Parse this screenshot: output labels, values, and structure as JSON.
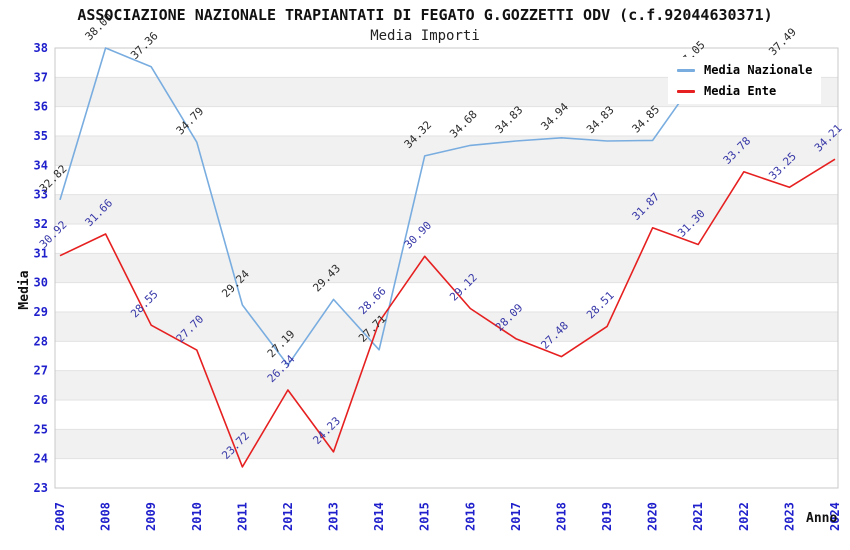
{
  "chart_data": {
    "type": "line",
    "title": "ASSOCIAZIONE NAZIONALE TRAPIANTATI DI FEGATO G.GOZZETTI ODV (c.f.92044630371)",
    "subtitle": "Media Importi",
    "xlabel": "Anno",
    "ylabel": "Media",
    "x": [
      "2007",
      "2008",
      "2009",
      "2010",
      "2011",
      "2012",
      "2013",
      "2014",
      "2015",
      "2016",
      "2017",
      "2018",
      "2019",
      "2020",
      "2021",
      "2022",
      "2023",
      "2024"
    ],
    "ylim": [
      23,
      38
    ],
    "ytick_step": 1,
    "grid": true,
    "band_fill_alt": "#f1f1f1",
    "gridline_color": "#e2e2e2",
    "border_color": "#c9c9c9",
    "tick_label_color": "#1f1fcc",
    "legend_position": "top-right",
    "series": [
      {
        "name": "Media Nazionale",
        "color": "#79ade0",
        "label_color": "#2b2b2b",
        "values": [
          32.82,
          38.0,
          37.36,
          34.79,
          29.24,
          27.19,
          29.43,
          27.71,
          34.32,
          34.68,
          34.83,
          34.94,
          34.83,
          34.85,
          37.05,
          37.3,
          37.49,
          null
        ],
        "labels": [
          "32.82",
          "38.00",
          "37.36",
          "34.79",
          "29.24",
          "27.19",
          "29.43",
          "27.71",
          "34.32",
          "34.68",
          "34.83",
          "34.94",
          "34.83",
          "34.85",
          "37.05",
          "",
          "37.49",
          ""
        ]
      },
      {
        "name": "Media Ente",
        "color": "#e62020",
        "label_color": "#3838a8",
        "values": [
          30.92,
          31.66,
          28.55,
          27.7,
          23.72,
          26.34,
          24.23,
          28.66,
          30.9,
          29.12,
          28.09,
          27.48,
          28.51,
          31.87,
          31.3,
          33.78,
          33.25,
          34.21
        ],
        "labels": [
          "30.92",
          "31.66",
          "28.55",
          "27.70",
          "23.72",
          "26.34",
          "24.23",
          "28.66",
          "30.90",
          "29.12",
          "28.09",
          "27.48",
          "28.51",
          "31.87",
          "31.30",
          "33.78",
          "33.25",
          "34.21"
        ]
      }
    ]
  }
}
